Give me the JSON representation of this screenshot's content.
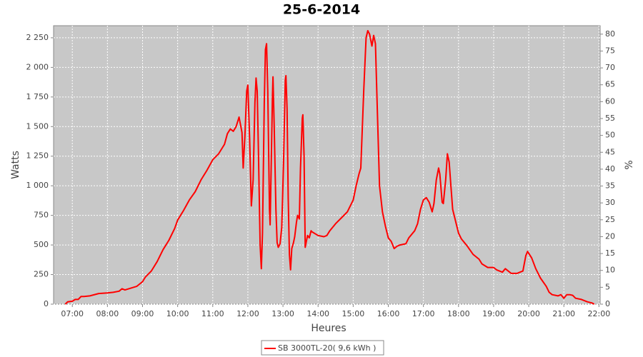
{
  "chart_data": {
    "type": "line",
    "title": "25-6-2014",
    "x_label": "Heures",
    "y_label": "Watts",
    "y2_label": "%",
    "x": [
      "06:48",
      "06:52",
      "07:00",
      "07:05",
      "07:10",
      "07:15",
      "07:20",
      "07:30",
      "07:45",
      "08:00",
      "08:10",
      "08:20",
      "08:25",
      "08:30",
      "08:40",
      "08:50",
      "09:00",
      "09:05",
      "09:15",
      "09:25",
      "09:35",
      "09:45",
      "09:55",
      "10:00",
      "10:10",
      "10:20",
      "10:30",
      "10:40",
      "10:50",
      "11:00",
      "11:10",
      "11:20",
      "11:25",
      "11:30",
      "11:35",
      "11:40",
      "11:45",
      "11:50",
      "11:52",
      "11:55",
      "11:58",
      "12:00",
      "12:03",
      "12:06",
      "12:09",
      "12:12",
      "12:14",
      "12:16",
      "12:18",
      "12:21",
      "12:23",
      "12:25",
      "12:28",
      "12:30",
      "12:32",
      "12:34",
      "12:37",
      "12:38",
      "12:40",
      "12:42",
      "12:43",
      "12:45",
      "12:48",
      "12:50",
      "12:52",
      "12:55",
      "12:58",
      "13:01",
      "13:04",
      "13:05",
      "13:07",
      "13:09",
      "13:11",
      "13:13",
      "13:15",
      "13:18",
      "13:20",
      "13:23",
      "13:25",
      "13:28",
      "13:30",
      "13:33",
      "13:34",
      "13:36",
      "13:38",
      "13:40",
      "13:42",
      "13:45",
      "13:48",
      "13:50",
      "14:00",
      "14:10",
      "14:15",
      "14:20",
      "14:30",
      "14:40",
      "14:50",
      "15:00",
      "15:05",
      "15:10",
      "15:13",
      "15:18",
      "15:22",
      "15:25",
      "15:28",
      "15:32",
      "15:35",
      "15:38",
      "15:42",
      "15:45",
      "15:50",
      "15:55",
      "16:00",
      "16:05",
      "16:10",
      "16:15",
      "16:20",
      "16:30",
      "16:35",
      "16:45",
      "16:50",
      "16:55",
      "17:00",
      "17:05",
      "17:10",
      "17:15",
      "17:18",
      "17:22",
      "17:26",
      "17:28",
      "17:32",
      "17:34",
      "17:38",
      "17:41",
      "17:44",
      "17:47",
      "17:50",
      "17:55",
      "18:00",
      "18:05",
      "18:15",
      "18:25",
      "18:35",
      "18:40",
      "18:50",
      "19:00",
      "19:05",
      "19:15",
      "19:20",
      "19:30",
      "19:40",
      "19:45",
      "19:50",
      "19:55",
      "19:58",
      "20:05",
      "20:12",
      "20:20",
      "20:30",
      "20:35",
      "20:40",
      "20:50",
      "20:55",
      "21:00",
      "21:05",
      "21:10",
      "21:15",
      "21:20",
      "21:30",
      "21:40",
      "21:48",
      "21:52"
    ],
    "series": [
      {
        "name": "SB 3000TL-20( 9,6 kWh )",
        "color": "#ff0000",
        "values": [
          0,
          20,
          25,
          40,
          40,
          65,
          65,
          70,
          90,
          95,
          100,
          110,
          130,
          120,
          135,
          150,
          190,
          230,
          280,
          360,
          460,
          540,
          640,
          710,
          790,
          880,
          950,
          1050,
          1130,
          1220,
          1270,
          1350,
          1440,
          1480,
          1460,
          1500,
          1580,
          1450,
          1150,
          1420,
          1800,
          1850,
          1400,
          830,
          1050,
          1700,
          1910,
          1800,
          1300,
          500,
          300,
          600,
          1700,
          2150,
          2200,
          1800,
          800,
          670,
          1200,
          1750,
          1920,
          1500,
          800,
          520,
          480,
          510,
          650,
          1200,
          1890,
          1930,
          1650,
          900,
          420,
          290,
          470,
          520,
          570,
          690,
          750,
          720,
          1150,
          1570,
          1600,
          1250,
          480,
          530,
          580,
          560,
          620,
          610,
          580,
          570,
          580,
          620,
          680,
          730,
          780,
          880,
          1000,
          1100,
          1150,
          1800,
          2250,
          2310,
          2280,
          2180,
          2270,
          2200,
          1500,
          1000,
          780,
          660,
          560,
          530,
          470,
          490,
          500,
          510,
          560,
          620,
          680,
          800,
          880,
          900,
          860,
          780,
          850,
          1050,
          1150,
          1100,
          860,
          850,
          1050,
          1270,
          1200,
          1000,
          800,
          700,
          600,
          550,
          490,
          420,
          380,
          340,
          310,
          310,
          290,
          270,
          300,
          260,
          260,
          270,
          280,
          410,
          445,
          390,
          300,
          220,
          150,
          100,
          80,
          70,
          80,
          50,
          80,
          80,
          75,
          50,
          40,
          20,
          10,
          0
        ]
      }
    ],
    "xlim": [
      "06:28",
      "22:02"
    ],
    "xticks": [
      "07:00",
      "08:00",
      "09:00",
      "10:00",
      "11:00",
      "12:00",
      "13:00",
      "14:00",
      "15:00",
      "16:00",
      "17:00",
      "18:00",
      "19:00",
      "20:00",
      "21:00",
      "22:00"
    ],
    "ylim": [
      0,
      2352
    ],
    "yticks": [
      0,
      250,
      500,
      750,
      {
        "value": 1000,
        "label": "1 000"
      },
      {
        "value": 1250,
        "label": "1 250"
      },
      {
        "value": 1500,
        "label": "1 500"
      },
      {
        "value": 1750,
        "label": "1 750"
      },
      {
        "value": 2000,
        "label": "2 000"
      },
      {
        "value": 2250,
        "label": "2 250"
      }
    ],
    "y2lim": [
      0,
      82.5
    ],
    "y2ticks": [
      0,
      5,
      10,
      15,
      20,
      25,
      30,
      35,
      40,
      45,
      50,
      55,
      60,
      65,
      70,
      75,
      80
    ],
    "grid": true,
    "legend": "bottom"
  }
}
